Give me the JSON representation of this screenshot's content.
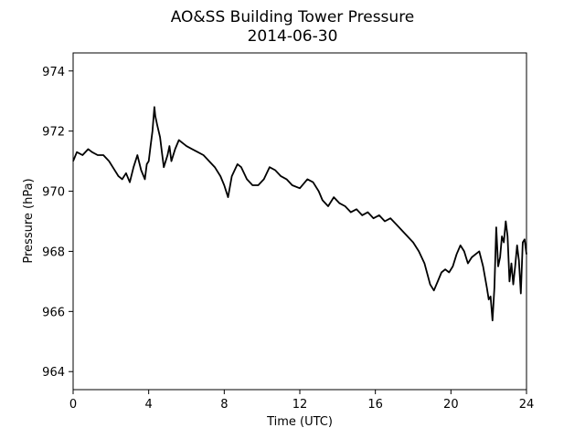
{
  "chart_data": {
    "type": "line",
    "title": "AO&SS Building Tower Pressure",
    "subtitle": "2014-06-30",
    "xlabel": "Time (UTC)",
    "ylabel": "Pressure (hPa)",
    "xlim": [
      0,
      24
    ],
    "ylim": [
      963.4,
      974.6
    ],
    "xticks": [
      0,
      4,
      8,
      12,
      16,
      20,
      24
    ],
    "yticks": [
      964,
      966,
      968,
      970,
      972,
      974
    ],
    "grid": false,
    "line_color": "#000000",
    "series": [
      {
        "x": [
          0,
          0.2,
          0.5,
          0.8,
          1.0,
          1.3,
          1.6,
          1.9,
          2.1,
          2.4,
          2.6,
          2.8,
          3.0,
          3.2,
          3.4,
          3.6,
          3.8,
          3.9,
          4.0,
          4.1,
          4.2,
          4.3,
          4.35,
          4.45,
          4.6,
          4.7,
          4.8,
          5.0,
          5.1,
          5.2,
          5.4,
          5.6,
          5.8,
          6.0,
          6.3,
          6.6,
          6.9,
          7.2,
          7.5,
          7.8,
          8.0,
          8.2,
          8.4,
          8.7,
          8.9,
          9.2,
          9.5,
          9.8,
          10.1,
          10.4,
          10.7,
          11.0,
          11.3,
          11.6,
          12.0,
          12.4,
          12.7,
          13.0,
          13.2,
          13.5,
          13.8,
          14.1,
          14.4,
          14.7,
          15.0,
          15.3,
          15.6,
          15.9,
          16.2,
          16.5,
          16.8,
          17.1,
          17.4,
          17.7,
          18.0,
          18.3,
          18.6,
          18.9,
          19.1,
          19.3,
          19.5,
          19.7,
          19.9,
          20.1,
          20.3,
          20.5,
          20.7,
          20.9,
          21.1,
          21.3,
          21.5,
          21.7,
          21.9,
          22.0,
          22.1,
          22.2,
          22.3,
          22.4,
          22.5,
          22.6,
          22.7,
          22.8,
          22.9,
          23.0,
          23.1,
          23.2,
          23.3,
          23.4,
          23.5,
          23.6,
          23.7,
          23.8,
          23.9,
          24.0
        ],
        "y": [
          971.0,
          971.3,
          971.2,
          971.4,
          971.3,
          971.2,
          971.2,
          971.0,
          970.8,
          970.5,
          970.4,
          970.6,
          970.3,
          970.8,
          971.2,
          970.7,
          970.4,
          970.9,
          971.0,
          971.5,
          972.0,
          972.8,
          972.5,
          972.2,
          971.8,
          971.3,
          970.8,
          971.2,
          971.5,
          971.0,
          971.4,
          971.7,
          971.6,
          971.5,
          971.4,
          971.3,
          971.2,
          971.0,
          970.8,
          970.5,
          970.2,
          969.8,
          970.5,
          970.9,
          970.8,
          970.4,
          970.2,
          970.2,
          970.4,
          970.8,
          970.7,
          970.5,
          970.4,
          970.2,
          970.1,
          970.4,
          970.3,
          970.0,
          969.7,
          969.5,
          969.8,
          969.6,
          969.5,
          969.3,
          969.4,
          969.2,
          969.3,
          969.1,
          969.2,
          969.0,
          969.1,
          968.9,
          968.7,
          968.5,
          968.3,
          968.0,
          967.6,
          966.9,
          966.7,
          967.0,
          967.3,
          967.4,
          967.3,
          967.5,
          967.9,
          968.2,
          968.0,
          967.6,
          967.8,
          967.9,
          968.0,
          967.5,
          966.8,
          966.4,
          966.5,
          965.7,
          966.8,
          968.8,
          967.5,
          967.8,
          968.5,
          968.3,
          969.0,
          968.5,
          967.0,
          967.6,
          966.9,
          967.5,
          968.2,
          967.7,
          966.6,
          968.3,
          968.4,
          967.9
        ]
      }
    ]
  }
}
